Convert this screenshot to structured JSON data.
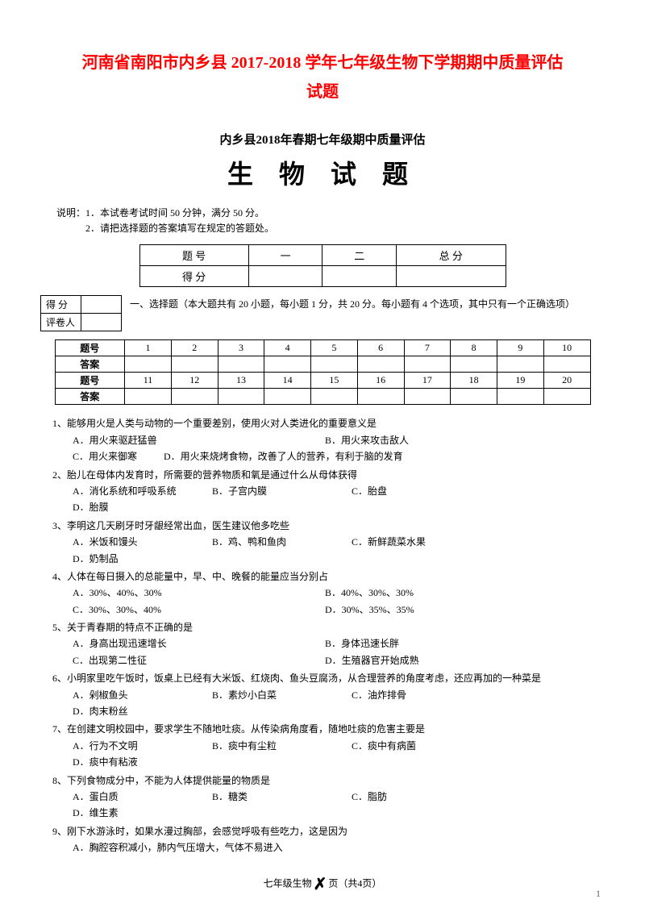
{
  "doc_title_line1": "河南省南阳市内乡县 2017-2018 学年七年级生物下学期期中质量评估",
  "doc_title_line2": "试题",
  "exam_header": "内乡县2018年春期七年级期中质量评估",
  "exam_title": "生 物  试 题",
  "instructions": {
    "line1": "说明：1．本试卷考试时间 50 分钟，满分 50 分。",
    "line2": "　　　2．请把选择题的答案填写在规定的答题处。"
  },
  "score_table": {
    "r1c1": "题 号",
    "r1c2": "一",
    "r1c3": "二",
    "r1c4": "总 分",
    "r2c1": "得 分"
  },
  "side_score": {
    "r1": "得 分",
    "r2": "评卷人"
  },
  "section1_intro": "一、选择题（本大题共有 20 小题，每小题 1 分，共 20 分。每小题有 4 个选项，其中只有一个正确选项）",
  "answer_table": {
    "label_q": "题号",
    "label_a": "答案",
    "nums1": [
      "1",
      "2",
      "3",
      "4",
      "5",
      "6",
      "7",
      "8",
      "9",
      "10"
    ],
    "nums2": [
      "11",
      "12",
      "13",
      "14",
      "15",
      "16",
      "17",
      "18",
      "19",
      "20"
    ]
  },
  "questions": {
    "q1": {
      "stem": "1、能够用火是人类与动物的一个重要差别，使用火对人类进化的重要意义是",
      "a": "A．用火来驱赶猛兽",
      "b": "B．用火来攻击敌人",
      "c": "C．用火来御寒",
      "d": "D．用火来烧烤食物，改善了人的营养，有利于脑的发育"
    },
    "q2": {
      "stem": "2、胎儿在母体内发育时，所需要的营养物质和氧是通过什么从母体获得",
      "a": "A．消化系统和呼吸系统",
      "b": "B．子宫内膜",
      "c": "C．胎盘",
      "d": "D．胎膜"
    },
    "q3": {
      "stem": "3、李明这几天刷牙时牙龈经常出血，医生建议他多吃些",
      "a": "A．米饭和馒头",
      "b": "B．鸡、鸭和鱼肉",
      "c": "C．新鲜蔬菜水果",
      "d": "D．奶制品"
    },
    "q4": {
      "stem": "4、人体在每日摄入的总能量中，早、中、晚餐的能量应当分别占",
      "a": "A．30%、40%、30%",
      "b": "B．40%、30%、30%",
      "c": "C．30%、30%、40%",
      "d": "D．30%、35%、35%"
    },
    "q5": {
      "stem": "5、关于青春期的特点不正确的是",
      "a": "A．身高出现迅速增长",
      "b": "B．身体迅速长胖",
      "c": "C．出现第二性征",
      "d": "D．生殖器官开始成熟"
    },
    "q6": {
      "stem": "6、小明家里吃午饭时，饭桌上已经有大米饭、红烧肉、鱼头豆腐汤，从合理营养的角度考虑，还应再加的一种菜是",
      "a": "A．剁椒鱼头",
      "b": "B．素炒小白菜",
      "c": "C．油炸排骨",
      "d": "D．肉末粉丝"
    },
    "q7": {
      "stem": "7、在创建文明校园中，要求学生不随地吐痰。从传染病角度看，随地吐痰的危害主要是",
      "a": "A．行为不文明",
      "b": "B．痰中有尘粒",
      "c": "C．痰中有病菌",
      "d": "D．痰中有粘液"
    },
    "q8": {
      "stem": "8、下列食物成分中，不能为人体提供能量的物质是",
      "a": "A．蛋白质",
      "b": "B．糖类",
      "c": "C．脂肪",
      "d": "D．维生素"
    },
    "q9": {
      "stem": "9、刚下水游泳时，如果水漫过胸部，会感觉呼吸有些吃力，这是因为",
      "a": "A．胸腔容积减小，肺内气压增大，气体不易进入"
    }
  },
  "footer": "七年级生物",
  "footer_tail": "页（共4页）",
  "page_number": "1"
}
